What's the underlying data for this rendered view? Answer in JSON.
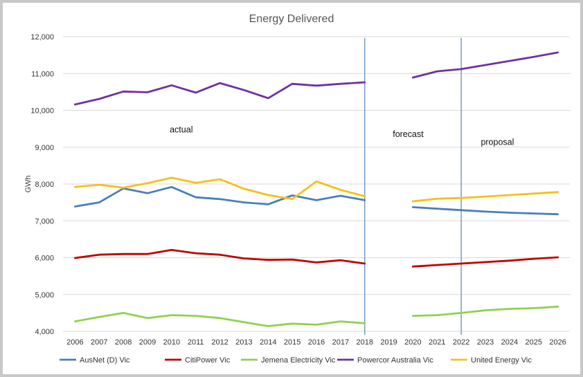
{
  "chart_data": {
    "type": "line",
    "title": "Energy Delivered",
    "ylabel": "GWh",
    "xlabel": "",
    "ylim": [
      4000,
      12000
    ],
    "yticks": [
      4000,
      5000,
      6000,
      7000,
      8000,
      9000,
      10000,
      11000,
      12000
    ],
    "ytick_labels": [
      "4,000",
      "5,000",
      "6,000",
      "7,000",
      "8,000",
      "9,000",
      "10,000",
      "11,000",
      "12,000"
    ],
    "categories": [
      "2006",
      "2007",
      "2008",
      "2009",
      "2010",
      "2011",
      "2012",
      "2013",
      "2014",
      "2015",
      "2016",
      "2017",
      "2018",
      "2019",
      "2020",
      "2021",
      "2022",
      "2023",
      "2024",
      "2025",
      "2026"
    ],
    "grid": "horizontal",
    "legend_position": "bottom",
    "series": [
      {
        "name": "AusNet (D) Vic",
        "color": "#4a7ebb",
        "values": [
          7390,
          7500,
          7880,
          7750,
          7920,
          7640,
          7590,
          7500,
          7450,
          7690,
          7560,
          7680,
          7560,
          null,
          7370,
          7330,
          7290,
          7250,
          7220,
          7200,
          7180
        ]
      },
      {
        "name": "CitiPower Vic",
        "color": "#c00000",
        "values": [
          5990,
          6080,
          6100,
          6100,
          6210,
          6120,
          6080,
          5980,
          5940,
          5950,
          5870,
          5930,
          5840,
          null,
          5760,
          5800,
          5840,
          5880,
          5920,
          5970,
          6010
        ]
      },
      {
        "name": "Jemena Electricity Vic",
        "color": "#8fd14f",
        "values": [
          4270,
          4390,
          4500,
          4360,
          4440,
          4420,
          4360,
          4250,
          4140,
          4210,
          4180,
          4270,
          4220,
          null,
          4420,
          4440,
          4500,
          4570,
          4610,
          4630,
          4670
        ]
      },
      {
        "name": "Powercor Australia Vic",
        "color": "#7030a0",
        "values": [
          10160,
          10310,
          10510,
          10490,
          10680,
          10480,
          10740,
          10550,
          10330,
          10720,
          10670,
          10720,
          10760,
          null,
          10890,
          11060,
          11120,
          11230,
          11340,
          11450,
          11570
        ]
      },
      {
        "name": "United Energy Vic",
        "color": "#f5c01a",
        "values": [
          7920,
          7980,
          7900,
          8020,
          8170,
          8030,
          8130,
          7870,
          7700,
          7590,
          8070,
          7840,
          7670,
          null,
          7530,
          7600,
          7620,
          7660,
          7700,
          7740,
          7780
        ]
      }
    ],
    "vertical_lines": [
      {
        "at": "2018",
        "color": "#6a97c4"
      },
      {
        "at": "2022",
        "color": "#6a97c4"
      }
    ],
    "annotations": [
      {
        "text": "actual",
        "x": "2010.4",
        "y": 9400
      },
      {
        "text": "forecast",
        "x": "2019.8",
        "y": 9280
      },
      {
        "text": "proposal",
        "x": "2023.5",
        "y": 9060
      }
    ]
  }
}
